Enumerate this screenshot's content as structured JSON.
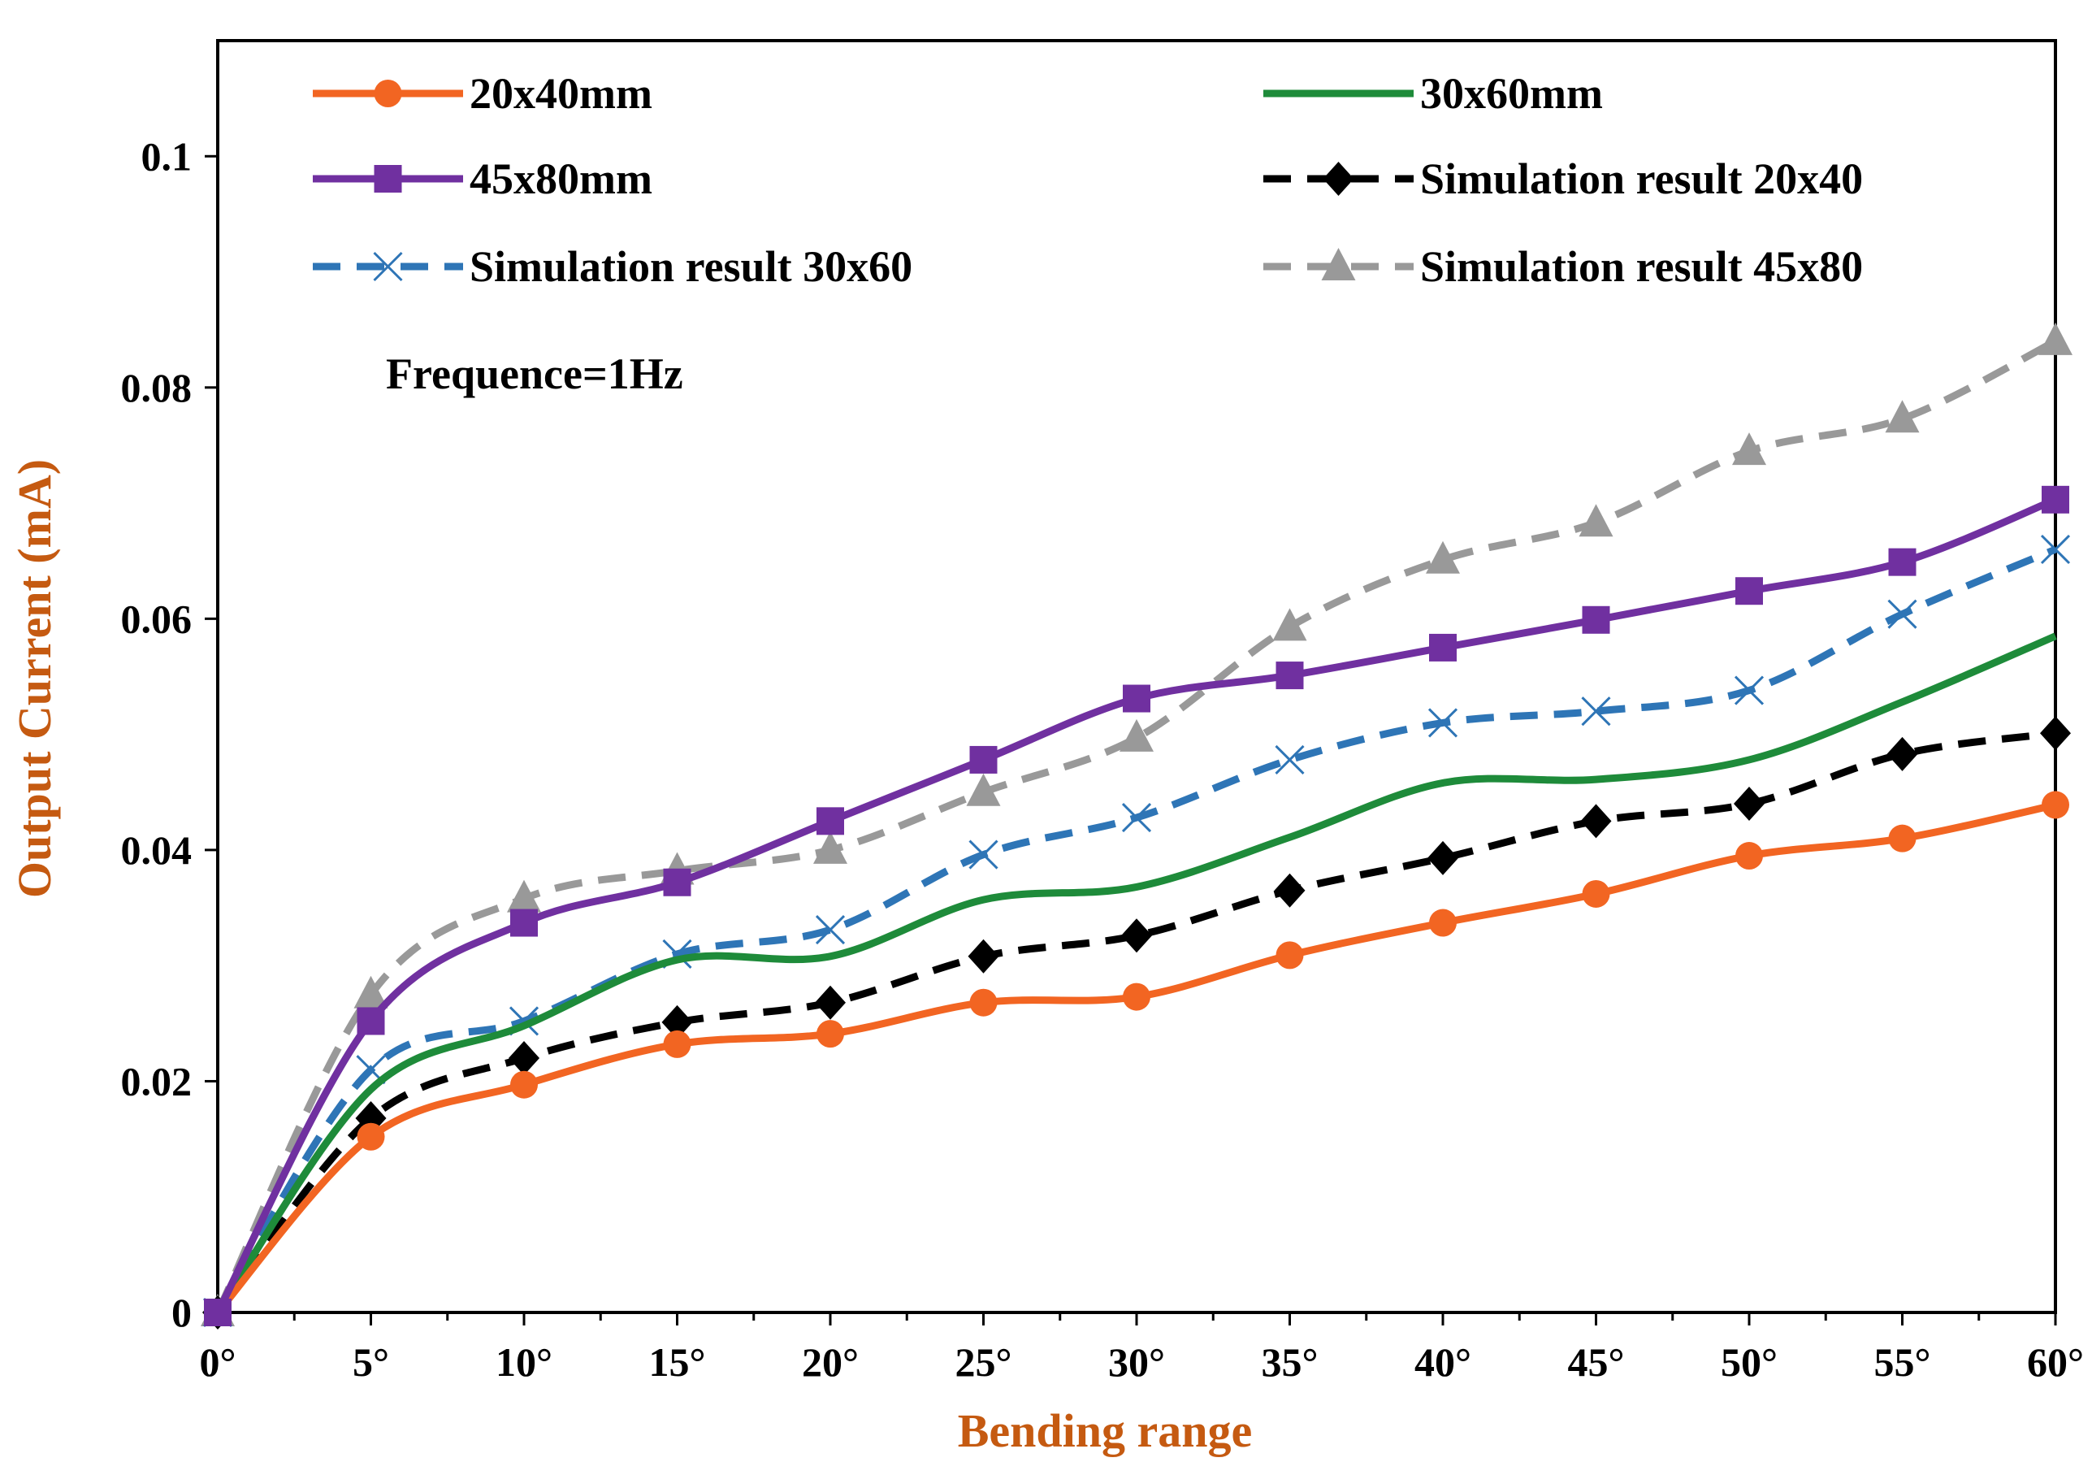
{
  "chart_data": {
    "type": "line",
    "title": "",
    "xlabel": "Bending range",
    "ylabel": "Output Current (mA)",
    "x": [
      0,
      5,
      10,
      15,
      20,
      25,
      30,
      35,
      40,
      45,
      50,
      55,
      60
    ],
    "x_tick_labels": [
      "0°",
      "5°",
      "10°",
      "15°",
      "20°",
      "25°",
      "30°",
      "35°",
      "40°",
      "45°",
      "50°",
      "55°",
      "60°"
    ],
    "ylim": [
      0,
      0.11
    ],
    "y_ticks": [
      0,
      0.02,
      0.04,
      0.06,
      0.08,
      0.1
    ],
    "y_tick_labels": [
      "0",
      "0.02",
      "0.04",
      "0.06",
      "0.08",
      "0.1"
    ],
    "grid": false,
    "legend_position": "top",
    "annotation": "Frequence=1Hz",
    "colors": {
      "axis_title": "#c55a11",
      "axis": "#000000"
    },
    "series": [
      {
        "name": "20x40mm",
        "color": "#f26522",
        "dash": "solid",
        "marker": "circle",
        "values": [
          0,
          0.0152,
          0.0197,
          0.0232,
          0.0241,
          0.0268,
          0.0273,
          0.0309,
          0.0337,
          0.0362,
          0.0395,
          0.041,
          0.0439
        ]
      },
      {
        "name": "30x60mm",
        "color": "#1e8b3a",
        "dash": "solid",
        "marker": "none",
        "values": [
          0,
          0.0193,
          0.0248,
          0.0305,
          0.0308,
          0.0357,
          0.0368,
          0.0411,
          0.0458,
          0.0461,
          0.0478,
          0.0528,
          0.0585
        ]
      },
      {
        "name": "45x80mm",
        "color": "#7030a0",
        "dash": "solid",
        "marker": "square",
        "values": [
          0,
          0.0252,
          0.0337,
          0.0372,
          0.0425,
          0.0478,
          0.0531,
          0.0551,
          0.0575,
          0.0599,
          0.0624,
          0.0649,
          0.0703
        ]
      },
      {
        "name": "Simulation result 20x40",
        "color": "#000000",
        "dash": "dashed",
        "marker": "diamond",
        "values": [
          0,
          0.0168,
          0.022,
          0.0251,
          0.0268,
          0.0308,
          0.0326,
          0.0365,
          0.0393,
          0.0425,
          0.044,
          0.0483,
          0.0501
        ]
      },
      {
        "name": "Simulation result 30x60",
        "color": "#2e75b6",
        "dash": "dashed",
        "marker": "x",
        "values": [
          0,
          0.021,
          0.0252,
          0.031,
          0.0331,
          0.0396,
          0.0428,
          0.0478,
          0.051,
          0.052,
          0.0538,
          0.0604,
          0.066
        ]
      },
      {
        "name": "Simulation result 45x80",
        "color": "#999999",
        "dash": "dashed",
        "marker": "triangle",
        "values": [
          0,
          0.0275,
          0.0358,
          0.0382,
          0.04,
          0.045,
          0.0497,
          0.0593,
          0.0651,
          0.0683,
          0.0745,
          0.0773,
          0.084
        ]
      }
    ]
  }
}
